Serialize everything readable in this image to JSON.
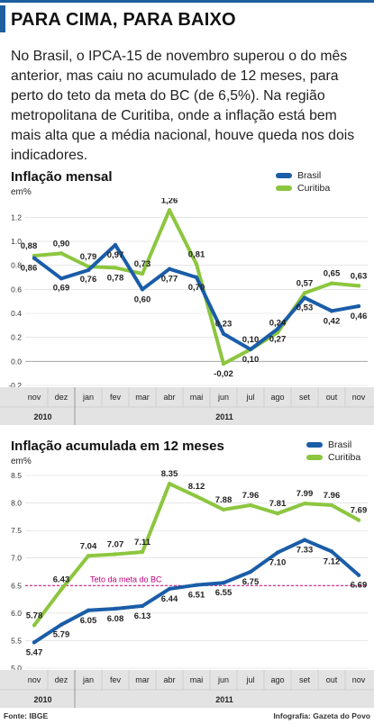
{
  "header": {
    "title": "PARA CIMA, PARA BAIXO"
  },
  "intro": "No Brasil, o IPCA-15 de novembro superou o do mês anterior, mas caiu no acumulado de 12 meses, para perto do teto da meta do BC (de 6,5%). Na região metropolitana de Curitiba, onde a inflação está bem mais alta que a média nacional, houve queda nos dois indicadores.",
  "colors": {
    "brasil": "#1a5da8",
    "curitiba": "#8cc63f",
    "meta": "#c0007a",
    "axis_band": "#e3e3e3"
  },
  "chart_data": [
    {
      "type": "line",
      "title": "Inflação mensal",
      "ylabel": "em%",
      "categories": [
        "nov",
        "dez",
        "jan",
        "fev",
        "mar",
        "abr",
        "mai",
        "jun",
        "jul",
        "ago",
        "set",
        "out",
        "nov"
      ],
      "year_labels": [
        "2010",
        "2011"
      ],
      "ylim": [
        -0.2,
        1.3
      ],
      "yticks": [
        "1.2",
        "1.0",
        "0.8",
        "0.6",
        "0.4",
        "0.2",
        "0.0",
        "-0.2"
      ],
      "legend_position": "top-right",
      "series": [
        {
          "name": "Brasil",
          "values": [
            0.86,
            0.69,
            0.76,
            0.97,
            0.6,
            0.77,
            0.7,
            0.23,
            0.1,
            0.27,
            0.53,
            0.42,
            0.46
          ],
          "labels": [
            "0,86",
            "0,69",
            "0,76",
            "0,97",
            "0,60",
            "0,77",
            "0,70",
            "0,23",
            "0,10",
            "0,27",
            "0,53",
            "0,42",
            "0,46"
          ]
        },
        {
          "name": "Curitiba",
          "values": [
            0.88,
            0.9,
            0.79,
            0.78,
            0.73,
            1.26,
            0.81,
            -0.02,
            0.1,
            0.24,
            0.57,
            0.65,
            0.63
          ],
          "labels": [
            "0,88",
            "0,90",
            "0,79",
            "0,78",
            "0,73",
            "1,26",
            "0,81",
            "-0,02",
            "0,10",
            "0,24",
            "0,57",
            "0,65",
            "0,63"
          ]
        }
      ]
    },
    {
      "type": "line",
      "title": "Inflação acumulada em 12 meses",
      "ylabel": "em%",
      "categories": [
        "nov",
        "dez",
        "jan",
        "fev",
        "mar",
        "abr",
        "mai",
        "jun",
        "jul",
        "ago",
        "set",
        "out",
        "nov"
      ],
      "year_labels": [
        "2010",
        "2011"
      ],
      "ylim": [
        5.0,
        8.5
      ],
      "yticks": [
        "8.5",
        "8.0",
        "7.5",
        "7.0",
        "6.5",
        "6.0",
        "5.5",
        "5.0"
      ],
      "legend_position": "top-right",
      "reference_line": {
        "value": 6.5,
        "label": "Teto da meta do BC"
      },
      "series": [
        {
          "name": "Brasil",
          "values": [
            5.47,
            5.79,
            6.05,
            6.08,
            6.13,
            6.44,
            6.51,
            6.55,
            6.75,
            7.1,
            7.33,
            7.12,
            6.69
          ],
          "labels": [
            "5.47",
            "5.79",
            "6.05",
            "6.08",
            "6.13",
            "6.44",
            "6.51",
            "6.55",
            "6.75",
            "7.10",
            "7.33",
            "7.12",
            "6.69"
          ]
        },
        {
          "name": "Curitiba",
          "values": [
            5.78,
            6.43,
            7.04,
            7.07,
            7.11,
            8.35,
            8.12,
            7.88,
            7.96,
            7.81,
            7.99,
            7.96,
            7.69
          ],
          "labels": [
            "5.78",
            "6.43",
            "7.04",
            "7.07",
            "7.11",
            "8.35",
            "8.12",
            "7.88",
            "7.96",
            "7.81",
            "7.99",
            "7.96",
            "7.69"
          ]
        }
      ]
    }
  ],
  "footer": {
    "source": "Fonte: IBGE",
    "credit": "Infografia: Gazeta do Povo"
  }
}
